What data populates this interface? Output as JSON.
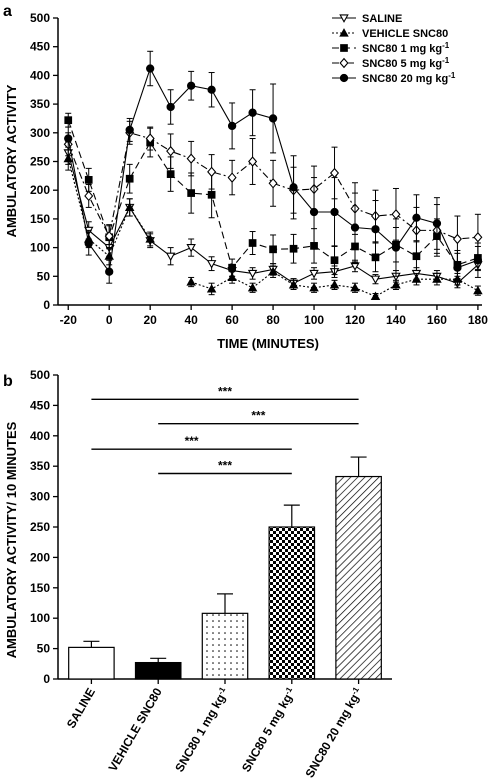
{
  "chart_data": [
    {
      "panel": "a",
      "type": "line",
      "xlabel": "TIME (MINUTES)",
      "ylabel": "AMBULATORY ACTIVITY",
      "xlim": [
        -25,
        182
      ],
      "ylim": [
        0,
        500
      ],
      "xticks": [
        -20,
        0,
        20,
        40,
        60,
        80,
        100,
        120,
        140,
        160,
        180
      ],
      "yticks": [
        0,
        50,
        100,
        150,
        200,
        250,
        300,
        350,
        400,
        450,
        500
      ],
      "legend_position": "top-right",
      "x": [
        -20,
        -10,
        0,
        10,
        20,
        30,
        40,
        50,
        60,
        70,
        80,
        90,
        100,
        110,
        120,
        130,
        140,
        150,
        160,
        170,
        180
      ],
      "series": [
        {
          "name": "SALINE",
          "marker": "triangle-down-open",
          "dash": "solid",
          "values": [
            265,
            130,
            100,
            170,
            112,
            85,
            100,
            72,
            60,
            55,
            62,
            38,
            55,
            58,
            68,
            45,
            50,
            55,
            50,
            38,
            70
          ],
          "errors": [
            20,
            15,
            15,
            15,
            12,
            15,
            15,
            12,
            10,
            10,
            10,
            8,
            10,
            10,
            10,
            8,
            10,
            10,
            10,
            8,
            10
          ]
        },
        {
          "name": "VEHICLE SNC80",
          "marker": "triangle-up-filled",
          "dash": "dotted",
          "values": [
            255,
            115,
            85,
            170,
            115,
            null,
            40,
            28,
            48,
            30,
            58,
            35,
            30,
            35,
            30,
            15,
            35,
            45,
            45,
            45,
            25
          ],
          "errors": [
            20,
            15,
            15,
            15,
            12,
            null,
            8,
            10,
            10,
            8,
            10,
            8,
            8,
            8,
            8,
            5,
            8,
            10,
            10,
            10,
            8
          ]
        },
        {
          "name": "SNC80 1 mg kg-1",
          "marker": "square-filled",
          "dash": "long-dash",
          "values": [
            322,
            218,
            118,
            220,
            283,
            228,
            195,
            192,
            65,
            108,
            97,
            98,
            103,
            78,
            102,
            83,
            105,
            85,
            120,
            70,
            82
          ],
          "errors": [
            12,
            20,
            20,
            25,
            25,
            30,
            35,
            40,
            15,
            20,
            25,
            25,
            30,
            25,
            30,
            25,
            30,
            25,
            30,
            20,
            20
          ]
        },
        {
          "name": "SNC80 5 mg kg-1",
          "marker": "diamond-open",
          "dash": "dash-dot",
          "values": [
            280,
            190,
            120,
            300,
            290,
            268,
            255,
            232,
            222,
            250,
            212,
            200,
            202,
            230,
            168,
            155,
            158,
            130,
            130,
            115,
            118
          ],
          "errors": [
            20,
            20,
            20,
            20,
            20,
            30,
            30,
            30,
            30,
            40,
            40,
            40,
            40,
            45,
            45,
            45,
            45,
            40,
            45,
            40,
            40
          ]
        },
        {
          "name": "SNC80 20 mg kg-1",
          "marker": "circle-filled",
          "dash": "solid",
          "values": [
            290,
            107,
            58,
            305,
            412,
            345,
            382,
            375,
            312,
            335,
            325,
            205,
            162,
            162,
            135,
            132,
            100,
            152,
            142,
            65,
            78
          ],
          "errors": [
            20,
            20,
            20,
            20,
            30,
            30,
            25,
            30,
            40,
            40,
            60,
            55,
            60,
            60,
            60,
            50,
            50,
            40,
            45,
            30,
            30
          ]
        }
      ]
    },
    {
      "panel": "b",
      "type": "bar",
      "ylabel": "AMBULATORY ACTIVITY/ 10 MINUTES",
      "ylim": [
        0,
        500
      ],
      "yticks": [
        0,
        50,
        100,
        150,
        200,
        250,
        300,
        350,
        400,
        450,
        500
      ],
      "categories": [
        "SALINE",
        "VEHICLE SNC80",
        "SNC80 1 mg kg-1",
        "SNC80 5 mg kg-1",
        "SNC80 20 mg kg-1"
      ],
      "values": [
        52,
        27,
        108,
        250,
        333
      ],
      "errors": [
        10,
        7,
        32,
        36,
        32
      ],
      "fills": [
        "white",
        "black",
        "dots",
        "checker",
        "diagonal"
      ],
      "significance": [
        {
          "from": 0,
          "to": 4,
          "y": 460,
          "label": "***"
        },
        {
          "from": 1,
          "to": 4,
          "y": 420,
          "label": "***"
        },
        {
          "from": 0,
          "to": 3,
          "y": 378,
          "label": "***"
        },
        {
          "from": 1,
          "to": 3,
          "y": 338,
          "label": "***"
        }
      ]
    }
  ],
  "panels": {
    "a_label": "a",
    "b_label": "b"
  }
}
